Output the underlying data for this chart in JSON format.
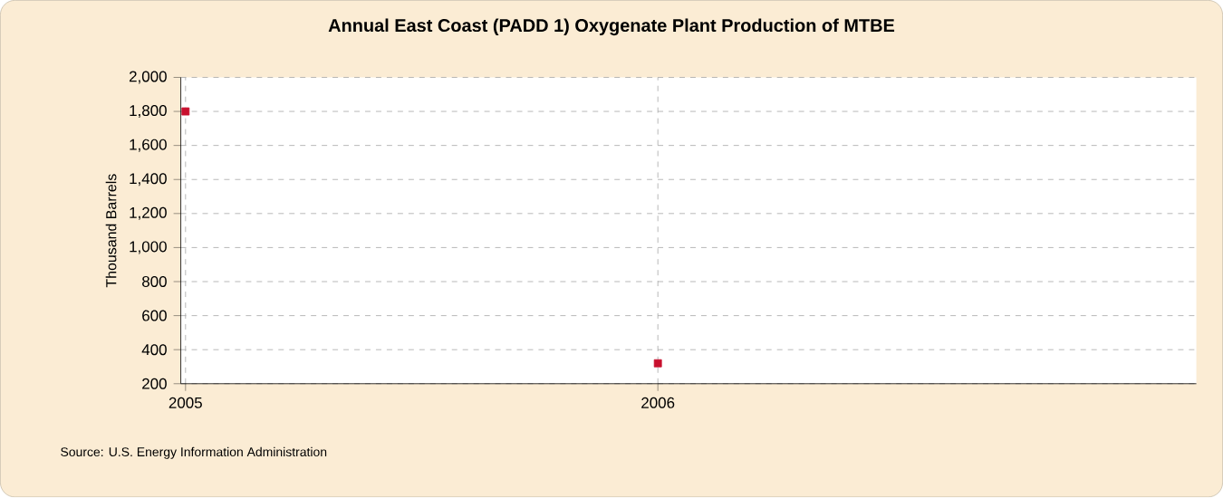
{
  "chart_data": {
    "type": "scatter",
    "title": "Annual East Coast (PADD 1) Oxygenate Plant Production of MTBE",
    "ylabel": "Thousand Barrels",
    "annotations": [
      "Source: U.S. Energy Information Administration"
    ],
    "x": [
      2005,
      2006
    ],
    "series": [
      {
        "color": "#c8102e",
        "values": [
          1800,
          320
        ]
      }
    ],
    "xlim": [
      2004.99,
      2007.14
    ],
    "xticks": [
      2005,
      2006
    ],
    "ylim": [
      200,
      2000
    ],
    "yticks": [
      200,
      400,
      600,
      800,
      {
        "value": 1000,
        "label": "1,000"
      },
      {
        "value": 1200,
        "label": "1,200"
      },
      {
        "value": 1400,
        "label": "1,400"
      },
      {
        "value": 1600,
        "label": "1,600"
      },
      {
        "value": 1800,
        "label": "1,800"
      },
      {
        "value": 2000,
        "label": "2,000"
      }
    ],
    "grid": true,
    "marker": "square"
  }
}
